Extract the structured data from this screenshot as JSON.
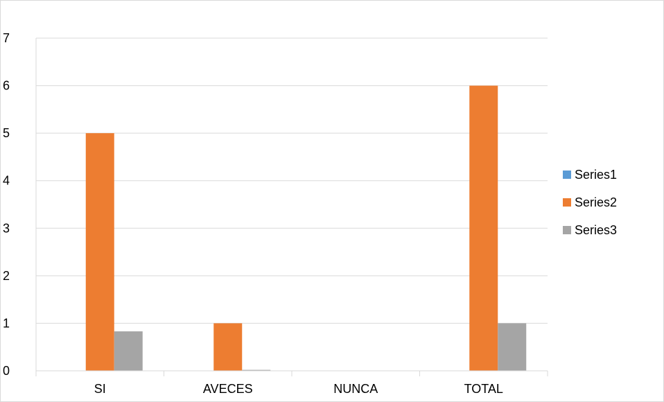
{
  "chart_data": {
    "type": "bar",
    "categories": [
      "SI",
      "AVECES",
      "NUNCA",
      "TOTAL"
    ],
    "series": [
      {
        "name": "Series1",
        "values": [
          0,
          0,
          0,
          0
        ],
        "color": "#5b9bd5"
      },
      {
        "name": "Series2",
        "values": [
          5,
          1,
          0,
          6
        ],
        "color": "#ed7d31"
      },
      {
        "name": "Series3",
        "values": [
          0.83,
          0.02,
          0,
          1
        ],
        "color": "#a5a5a5"
      }
    ],
    "ylim": [
      0,
      7
    ],
    "yticks": [
      0,
      1,
      2,
      3,
      4,
      5,
      6,
      7
    ],
    "grid": true,
    "legend": "right",
    "title": "",
    "xlabel": "",
    "ylabel": ""
  }
}
